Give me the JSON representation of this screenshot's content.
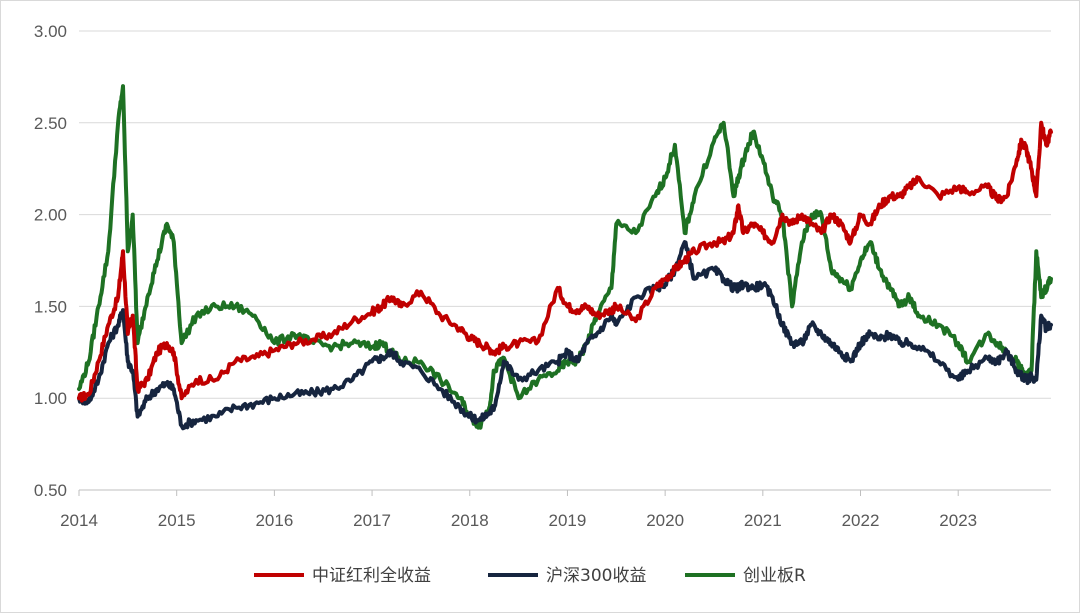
{
  "chart_data": {
    "type": "line",
    "title": "",
    "xlabel": "",
    "ylabel": "",
    "ylim": [
      0.5,
      3.0
    ],
    "yticks": [
      "0.50",
      "1.00",
      "1.50",
      "2.00",
      "2.50",
      "3.00"
    ],
    "xlim": [
      2014.0,
      2023.95
    ],
    "xticks": [
      "2014",
      "2015",
      "2016",
      "2017",
      "2018",
      "2019",
      "2020",
      "2021",
      "2022",
      "2023"
    ],
    "grid": "horizontal",
    "legend_position": "bottom",
    "series": [
      {
        "name": "中证红利全收益",
        "color": "#c00000",
        "x": [
          2014.0,
          2014.1,
          2014.2,
          2014.3,
          2014.4,
          2014.45,
          2014.5,
          2014.55,
          2014.6,
          2014.7,
          2014.8,
          2014.9,
          2014.97,
          2015.05,
          2015.2,
          2015.4,
          2015.6,
          2015.8,
          2016.0,
          2016.2,
          2016.4,
          2016.6,
          2016.8,
          2017.0,
          2017.1,
          2017.2,
          2017.3,
          2017.5,
          2017.7,
          2017.9,
          2018.0,
          2018.1,
          2018.2,
          2018.25,
          2018.35,
          2018.5,
          2018.7,
          2018.9,
          2019.0,
          2019.1,
          2019.2,
          2019.3,
          2019.45,
          2019.5,
          2019.7,
          2019.9,
          2020.0,
          2020.1,
          2020.2,
          2020.3,
          2020.5,
          2020.6,
          2020.7,
          2020.75,
          2020.8,
          2020.9,
          2021.0,
          2021.1,
          2021.2,
          2021.3,
          2021.4,
          2021.5,
          2021.6,
          2021.7,
          2021.8,
          2021.9,
          2022.0,
          2022.1,
          2022.2,
          2022.3,
          2022.4,
          2022.5,
          2022.6,
          2022.8,
          2023.0,
          2023.1,
          2023.3,
          2023.4,
          2023.5,
          2023.6,
          2023.65,
          2023.7,
          2023.75,
          2023.8,
          2023.85,
          2023.9,
          2023.95
        ],
        "values": [
          1.0,
          1.02,
          1.2,
          1.4,
          1.55,
          1.8,
          1.35,
          1.45,
          1.05,
          1.1,
          1.25,
          1.3,
          1.25,
          1.0,
          1.1,
          1.1,
          1.2,
          1.22,
          1.26,
          1.3,
          1.32,
          1.35,
          1.42,
          1.47,
          1.5,
          1.55,
          1.5,
          1.58,
          1.45,
          1.38,
          1.33,
          1.3,
          1.27,
          1.25,
          1.28,
          1.3,
          1.31,
          1.6,
          1.5,
          1.48,
          1.5,
          1.45,
          1.48,
          1.5,
          1.42,
          1.6,
          1.65,
          1.7,
          1.75,
          1.8,
          1.85,
          1.85,
          1.9,
          2.05,
          1.9,
          1.95,
          1.9,
          1.85,
          2.0,
          1.95,
          2.0,
          1.95,
          1.9,
          2.0,
          1.95,
          1.85,
          2.0,
          1.95,
          2.05,
          2.1,
          2.1,
          2.15,
          2.2,
          2.1,
          2.15,
          2.12,
          2.15,
          2.08,
          2.1,
          2.3,
          2.4,
          2.35,
          2.25,
          2.1,
          2.5,
          2.38,
          2.45
        ]
      },
      {
        "name": "沪深300收益",
        "color": "#16253f",
        "x": [
          2014.0,
          2014.1,
          2014.2,
          2014.3,
          2014.4,
          2014.45,
          2014.5,
          2014.55,
          2014.6,
          2014.7,
          2014.8,
          2014.9,
          2014.97,
          2015.05,
          2015.2,
          2015.4,
          2015.6,
          2015.8,
          2016.0,
          2016.2,
          2016.4,
          2016.6,
          2016.8,
          2017.0,
          2017.1,
          2017.2,
          2017.3,
          2017.5,
          2017.7,
          2017.9,
          2018.0,
          2018.1,
          2018.2,
          2018.25,
          2018.35,
          2018.5,
          2018.7,
          2018.9,
          2019.0,
          2019.1,
          2019.2,
          2019.3,
          2019.45,
          2019.5,
          2019.7,
          2019.9,
          2020.0,
          2020.1,
          2020.2,
          2020.3,
          2020.5,
          2020.6,
          2020.7,
          2020.75,
          2020.8,
          2020.9,
          2021.0,
          2021.1,
          2021.2,
          2021.3,
          2021.4,
          2021.5,
          2021.6,
          2021.7,
          2021.8,
          2021.9,
          2022.0,
          2022.1,
          2022.2,
          2022.3,
          2022.4,
          2022.5,
          2022.6,
          2022.8,
          2023.0,
          2023.1,
          2023.3,
          2023.4,
          2023.5,
          2023.6,
          2023.65,
          2023.7,
          2023.75,
          2023.8,
          2023.85,
          2023.9,
          2023.95
        ],
        "values": [
          1.0,
          0.98,
          1.1,
          1.3,
          1.4,
          1.48,
          1.2,
          1.15,
          0.9,
          1.0,
          1.05,
          1.08,
          1.05,
          0.85,
          0.88,
          0.9,
          0.95,
          0.97,
          1.0,
          1.02,
          1.03,
          1.05,
          1.1,
          1.2,
          1.22,
          1.25,
          1.2,
          1.15,
          1.05,
          0.95,
          0.9,
          0.88,
          0.92,
          0.95,
          1.2,
          1.1,
          1.15,
          1.2,
          1.25,
          1.2,
          1.3,
          1.35,
          1.45,
          1.4,
          1.55,
          1.6,
          1.62,
          1.7,
          1.85,
          1.65,
          1.7,
          1.65,
          1.6,
          1.6,
          1.62,
          1.6,
          1.62,
          1.55,
          1.4,
          1.3,
          1.3,
          1.4,
          1.35,
          1.3,
          1.25,
          1.2,
          1.3,
          1.35,
          1.32,
          1.35,
          1.3,
          1.3,
          1.28,
          1.2,
          1.1,
          1.15,
          1.22,
          1.2,
          1.25,
          1.15,
          1.12,
          1.1,
          1.12,
          1.1,
          1.45,
          1.38,
          1.4
        ]
      },
      {
        "name": "创业板R",
        "color": "#1e7123",
        "x": [
          2014.0,
          2014.1,
          2014.2,
          2014.3,
          2014.4,
          2014.45,
          2014.5,
          2014.55,
          2014.6,
          2014.7,
          2014.8,
          2014.9,
          2014.97,
          2015.05,
          2015.2,
          2015.4,
          2015.6,
          2015.8,
          2016.0,
          2016.2,
          2016.4,
          2016.6,
          2016.8,
          2017.0,
          2017.1,
          2017.2,
          2017.3,
          2017.5,
          2017.7,
          2017.9,
          2018.0,
          2018.1,
          2018.2,
          2018.25,
          2018.35,
          2018.5,
          2018.7,
          2018.9,
          2019.0,
          2019.1,
          2019.2,
          2019.3,
          2019.45,
          2019.5,
          2019.7,
          2019.9,
          2020.0,
          2020.1,
          2020.2,
          2020.3,
          2020.5,
          2020.6,
          2020.7,
          2020.75,
          2020.8,
          2020.9,
          2021.0,
          2021.1,
          2021.2,
          2021.3,
          2021.4,
          2021.5,
          2021.6,
          2021.7,
          2021.8,
          2021.9,
          2022.0,
          2022.1,
          2022.2,
          2022.3,
          2022.4,
          2022.5,
          2022.6,
          2022.8,
          2023.0,
          2023.1,
          2023.3,
          2023.4,
          2023.5,
          2023.6,
          2023.65,
          2023.7,
          2023.75,
          2023.8,
          2023.85,
          2023.9,
          2023.95
        ],
        "values": [
          1.05,
          1.2,
          1.5,
          1.8,
          2.5,
          2.7,
          1.8,
          2.0,
          1.3,
          1.55,
          1.75,
          1.95,
          1.85,
          1.3,
          1.45,
          1.5,
          1.5,
          1.45,
          1.3,
          1.35,
          1.3,
          1.28,
          1.3,
          1.28,
          1.3,
          1.25,
          1.2,
          1.2,
          1.1,
          1.0,
          0.9,
          0.85,
          0.95,
          1.15,
          1.22,
          1.0,
          1.1,
          1.15,
          1.2,
          1.2,
          1.3,
          1.45,
          1.6,
          1.95,
          1.9,
          2.1,
          2.2,
          2.38,
          1.9,
          2.1,
          2.4,
          2.5,
          2.1,
          2.2,
          2.3,
          2.45,
          2.3,
          2.1,
          2.0,
          1.5,
          1.85,
          2.0,
          2.0,
          1.7,
          1.65,
          1.6,
          1.75,
          1.85,
          1.7,
          1.6,
          1.5,
          1.55,
          1.45,
          1.4,
          1.3,
          1.2,
          1.35,
          1.3,
          1.25,
          1.2,
          1.15,
          1.12,
          1.15,
          1.8,
          1.55,
          1.6,
          1.65
        ]
      }
    ]
  }
}
